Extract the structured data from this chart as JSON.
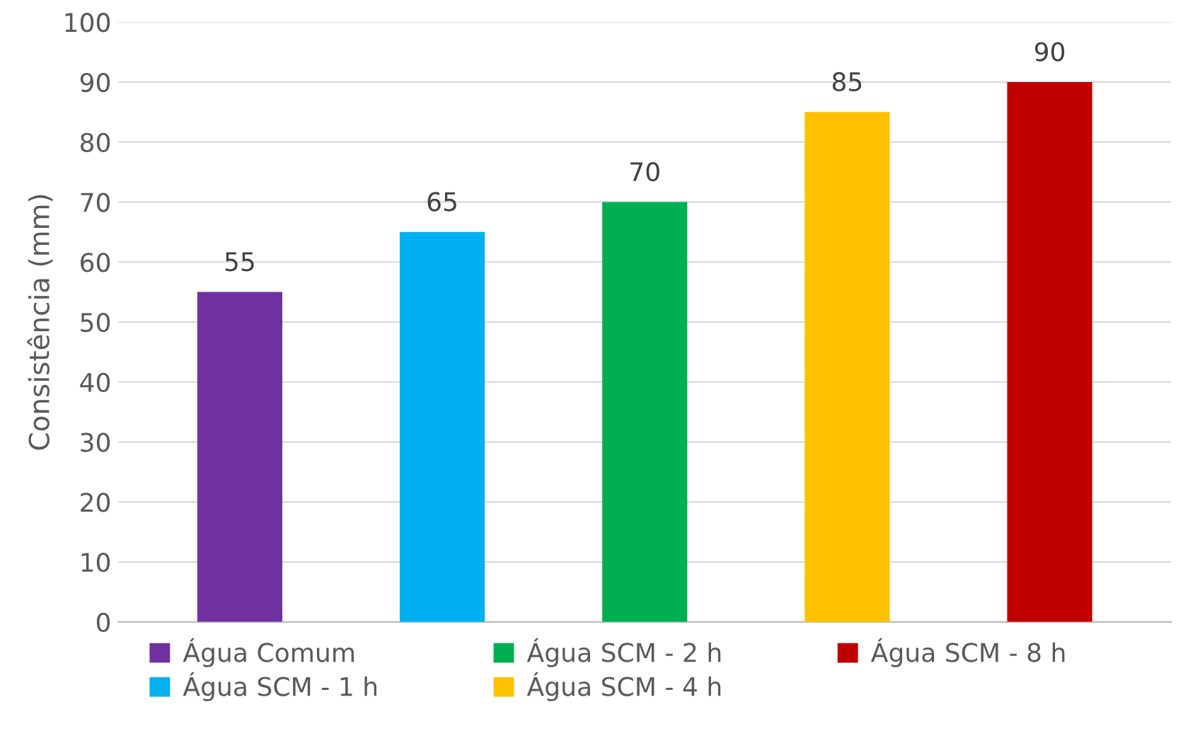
{
  "chart_data": {
    "type": "bar",
    "ylabel": "Consistência (mm)",
    "categories": [
      null,
      null,
      null,
      null,
      null
    ],
    "series": [
      {
        "name": "Água Comum",
        "color": "#7030a0",
        "values": [
          55,
          null,
          null,
          null,
          null
        ]
      },
      {
        "name": "Água SCM - 1 h",
        "color": "#00b0f0",
        "values": [
          null,
          65,
          null,
          null,
          null
        ]
      },
      {
        "name": "Água SCM - 2 h",
        "color": "#00b050",
        "values": [
          null,
          null,
          70,
          null,
          null
        ]
      },
      {
        "name": "Água SCM - 4 h",
        "color": "#ffc000",
        "values": [
          null,
          null,
          null,
          85,
          null
        ]
      },
      {
        "name": "Água SCM - 8 h",
        "color": "#c00000",
        "values": [
          null,
          null,
          null,
          null,
          90
        ]
      }
    ],
    "ylim": [
      0,
      100
    ],
    "yticks": [
      0,
      10,
      20,
      30,
      40,
      50,
      60,
      70,
      80,
      90,
      100
    ],
    "grid": "y",
    "legend": "bottom",
    "data_labels": true
  }
}
